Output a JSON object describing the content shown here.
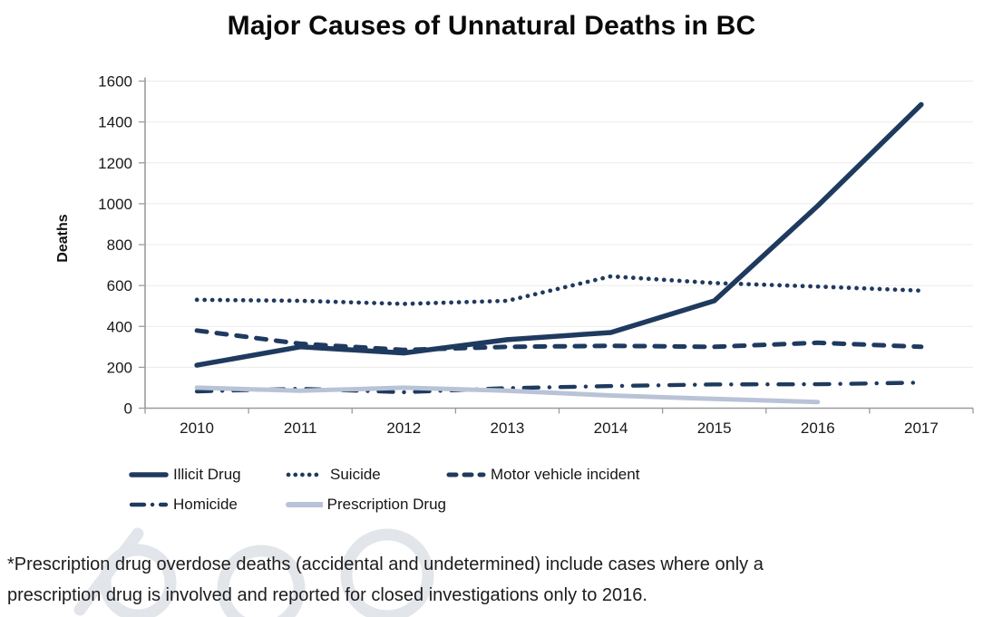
{
  "title": "Major Causes of Unnatural Deaths in BC",
  "chart_data": {
    "type": "line",
    "title": "Major Causes of Unnatural Deaths in BC",
    "xlabel": "",
    "ylabel": "Deaths",
    "ylim": [
      0,
      1600
    ],
    "ytick_step": 200,
    "grid": "horizontal",
    "legend_position": "bottom",
    "categories": [
      "2010",
      "2011",
      "2012",
      "2013",
      "2014",
      "2015",
      "2016",
      "2017"
    ],
    "series": [
      {
        "name": "Illicit Drug",
        "style": "solid",
        "color": "#1f3a5f",
        "values": [
          210,
          300,
          270,
          335,
          370,
          525,
          990,
          1485
        ]
      },
      {
        "name": "Suicide",
        "style": "dotted",
        "color": "#1f3a5f",
        "values": [
          530,
          525,
          510,
          525,
          645,
          612,
          595,
          575
        ]
      },
      {
        "name": "Motor vehicle incident",
        "style": "dashed",
        "color": "#1f3a5f",
        "values": [
          380,
          315,
          285,
          300,
          305,
          300,
          320,
          300
        ]
      },
      {
        "name": "Homicide",
        "style": "dashdot",
        "color": "#1f3a5f",
        "values": [
          82,
          95,
          78,
          98,
          108,
          116,
          117,
          125
        ]
      },
      {
        "name": "Prescription Drug",
        "style": "solid",
        "color": "#b9c3d7",
        "values": [
          100,
          85,
          100,
          85,
          62,
          45,
          30,
          null
        ]
      }
    ],
    "axis_color": "#9b9b9b",
    "gridline_color": "#ebebeb"
  },
  "footnote": {
    "line1": "*Prescription drug overdose deaths (accidental and undetermined) include cases where only a",
    "line2": "prescription drug is involved and reported for closed investigations only to 2016."
  }
}
